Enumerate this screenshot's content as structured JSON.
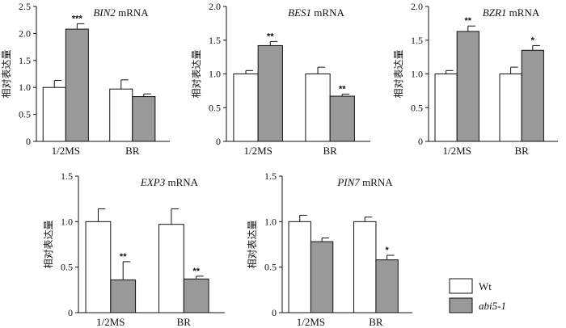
{
  "chart_data": [
    {
      "type": "bar",
      "title_gene": "BIN2",
      "title_suffix": " mRNA",
      "ylabel": "相对表达量",
      "categories": [
        "1/2MS",
        "BR"
      ],
      "ylim": [
        0,
        2.5
      ],
      "yticks": [
        "0",
        "0.5",
        "1.0",
        "1.5",
        "2.0",
        "2.5"
      ],
      "series": [
        {
          "name": "Wt",
          "values": [
            1.0,
            0.97
          ],
          "errors": [
            0.13,
            0.17
          ],
          "sig": [
            "",
            ""
          ]
        },
        {
          "name": "abi5-1",
          "values": [
            2.08,
            0.83
          ],
          "errors": [
            0.1,
            0.05
          ],
          "sig": [
            "***",
            ""
          ]
        }
      ]
    },
    {
      "type": "bar",
      "title_gene": "BES1",
      "title_suffix": " mRNA",
      "ylabel": "相对表达量",
      "categories": [
        "1/2MS",
        "BR"
      ],
      "ylim": [
        0,
        2.0
      ],
      "yticks": [
        "0",
        "0.5",
        "1.0",
        "1.5",
        "2.0"
      ],
      "series": [
        {
          "name": "Wt",
          "values": [
            1.0,
            1.0
          ],
          "errors": [
            0.05,
            0.1
          ],
          "sig": [
            "",
            ""
          ]
        },
        {
          "name": "abi5-1",
          "values": [
            1.42,
            0.67
          ],
          "errors": [
            0.06,
            0.03
          ],
          "sig": [
            "**",
            "**"
          ]
        }
      ]
    },
    {
      "type": "bar",
      "title_gene": "BZR1",
      "title_suffix": " mRNA",
      "ylabel": "相对表达量",
      "categories": [
        "1/2MS",
        "BR"
      ],
      "ylim": [
        0,
        2.0
      ],
      "yticks": [
        "0",
        "0.5",
        "1.0",
        "1.5",
        "2.0"
      ],
      "series": [
        {
          "name": "Wt",
          "values": [
            1.0,
            1.0
          ],
          "errors": [
            0.05,
            0.1
          ],
          "sig": [
            "",
            ""
          ]
        },
        {
          "name": "abi5-1",
          "values": [
            1.63,
            1.35
          ],
          "errors": [
            0.08,
            0.07
          ],
          "sig": [
            "**",
            "*"
          ]
        }
      ]
    },
    {
      "type": "bar",
      "title_gene": "EXP3",
      "title_suffix": " mRNA",
      "ylabel": "相对表达量",
      "categories": [
        "1/2MS",
        "BR"
      ],
      "ylim": [
        0,
        1.5
      ],
      "yticks": [
        "0",
        "0.5",
        "1.0",
        "1.5"
      ],
      "series": [
        {
          "name": "Wt",
          "values": [
            1.0,
            0.97
          ],
          "errors": [
            0.14,
            0.17
          ],
          "sig": [
            "",
            ""
          ]
        },
        {
          "name": "abi5-1",
          "values": [
            0.36,
            0.37
          ],
          "errors": [
            0.2,
            0.03
          ],
          "sig": [
            "**",
            "**"
          ]
        }
      ]
    },
    {
      "type": "bar",
      "title_gene": "PIN7",
      "title_suffix": " mRNA",
      "ylabel": "相对表达量",
      "categories": [
        "1/2MS",
        "BR"
      ],
      "ylim": [
        0,
        1.5
      ],
      "yticks": [
        "0",
        "0.5",
        "1.0",
        "1.5"
      ],
      "series": [
        {
          "name": "Wt",
          "values": [
            1.0,
            1.0
          ],
          "errors": [
            0.07,
            0.05
          ],
          "sig": [
            "",
            ""
          ]
        },
        {
          "name": "abi5-1",
          "values": [
            0.78,
            0.58
          ],
          "errors": [
            0.04,
            0.05
          ],
          "sig": [
            "",
            "*"
          ]
        }
      ]
    }
  ],
  "legend": {
    "placement": "bottom-right",
    "items": [
      {
        "label": "Wt",
        "color": "#ffffff"
      },
      {
        "label": "abi5-1",
        "color": "#999999"
      }
    ]
  },
  "colors": {
    "wt": "#ffffff",
    "mutant": "#999999",
    "stroke": "#111111"
  }
}
